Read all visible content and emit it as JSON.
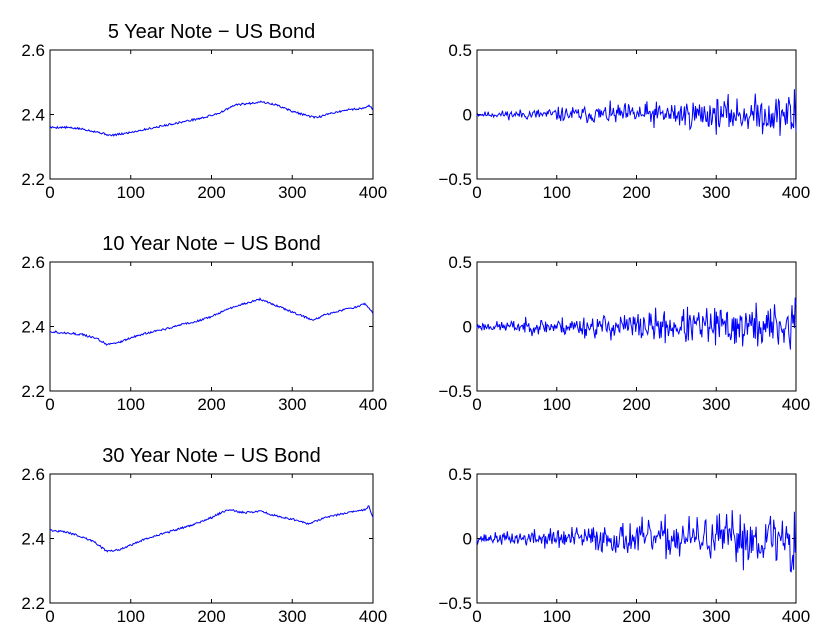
{
  "figure": {
    "background": "#ffffff",
    "line_color": "#0000ff",
    "axis_color": "#000000"
  },
  "chart_data": [
    {
      "type": "line",
      "title": "5 Year Note − US Bond",
      "xlim": [
        0,
        400
      ],
      "ylim": [
        2.2,
        2.6
      ],
      "xticks": [
        "0",
        "100",
        "200",
        "300",
        "400"
      ],
      "yticks": [
        "2.2",
        "2.4",
        "2.6"
      ],
      "grid": false,
      "series": [
        {
          "x": [
            0,
            20,
            40,
            60,
            75,
            90,
            110,
            130,
            150,
            170,
            190,
            210,
            230,
            250,
            260,
            280,
            300,
            320,
            330,
            350,
            370,
            390,
            395,
            400
          ],
          "y": [
            2.36,
            2.36,
            2.355,
            2.345,
            2.335,
            2.34,
            2.35,
            2.36,
            2.37,
            2.38,
            2.39,
            2.405,
            2.43,
            2.435,
            2.44,
            2.43,
            2.41,
            2.395,
            2.39,
            2.405,
            2.415,
            2.42,
            2.43,
            2.415
          ]
        }
      ]
    },
    {
      "type": "line",
      "title": "",
      "xlim": [
        0,
        400
      ],
      "ylim": [
        -0.5,
        0.5
      ],
      "xticks": [
        "0",
        "100",
        "200",
        "300",
        "400"
      ],
      "yticks": [
        "−0.5",
        "0",
        "0.5"
      ],
      "grid": false,
      "noise": {
        "n": 400,
        "base": 0.012,
        "growth": 0.085,
        "seed": 11
      }
    },
    {
      "type": "line",
      "title": "10 Year Note − US Bond",
      "xlim": [
        0,
        400
      ],
      "ylim": [
        2.2,
        2.6
      ],
      "xticks": [
        "0",
        "100",
        "200",
        "300",
        "400"
      ],
      "yticks": [
        "2.2",
        "2.4",
        "2.6"
      ],
      "grid": false,
      "series": [
        {
          "x": [
            0,
            20,
            40,
            60,
            70,
            85,
            100,
            120,
            140,
            160,
            180,
            200,
            220,
            240,
            260,
            270,
            290,
            310,
            325,
            340,
            360,
            380,
            390,
            395,
            400
          ],
          "y": [
            2.385,
            2.38,
            2.375,
            2.36,
            2.345,
            2.35,
            2.365,
            2.38,
            2.39,
            2.405,
            2.415,
            2.43,
            2.455,
            2.47,
            2.485,
            2.475,
            2.455,
            2.435,
            2.42,
            2.435,
            2.45,
            2.46,
            2.47,
            2.455,
            2.44
          ]
        }
      ]
    },
    {
      "type": "line",
      "title": "",
      "xlim": [
        0,
        400
      ],
      "ylim": [
        -0.5,
        0.5
      ],
      "xticks": [
        "0",
        "100",
        "200",
        "300",
        "400"
      ],
      "yticks": [
        "−0.5",
        "0",
        "0.5"
      ],
      "grid": false,
      "noise": {
        "n": 400,
        "base": 0.018,
        "growth": 0.1,
        "seed": 23
      }
    },
    {
      "type": "line",
      "title": "30 Year Note − US Bond",
      "xlim": [
        0,
        400
      ],
      "ylim": [
        2.2,
        2.6
      ],
      "xticks": [
        "0",
        "100",
        "200",
        "300",
        "400"
      ],
      "yticks": [
        "2.2",
        "2.4",
        "2.6"
      ],
      "grid": false,
      "series": [
        {
          "x": [
            0,
            20,
            40,
            55,
            70,
            85,
            100,
            120,
            140,
            160,
            180,
            200,
            220,
            240,
            260,
            280,
            300,
            320,
            340,
            360,
            380,
            390,
            395,
            400
          ],
          "y": [
            2.425,
            2.42,
            2.405,
            2.39,
            2.36,
            2.365,
            2.38,
            2.4,
            2.415,
            2.43,
            2.445,
            2.465,
            2.49,
            2.48,
            2.485,
            2.47,
            2.46,
            2.445,
            2.465,
            2.475,
            2.485,
            2.49,
            2.5,
            2.465
          ]
        }
      ]
    },
    {
      "type": "line",
      "title": "",
      "xlim": [
        0,
        400
      ],
      "ylim": [
        -0.5,
        0.5
      ],
      "xticks": [
        "0",
        "100",
        "200",
        "300",
        "400"
      ],
      "yticks": [
        "−0.5",
        "0",
        "0.5"
      ],
      "grid": false,
      "noise": {
        "n": 400,
        "base": 0.02,
        "growth": 0.12,
        "seed": 37
      }
    }
  ]
}
